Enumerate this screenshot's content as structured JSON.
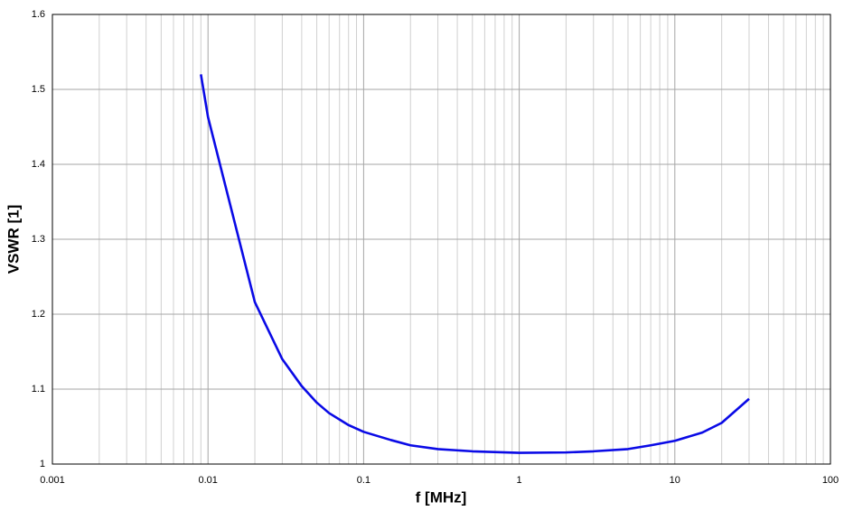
{
  "chart_data": {
    "type": "line",
    "x_label": "f [MHz]",
    "y_label": "VSWR [1]",
    "x": [
      0.009,
      0.01,
      0.02,
      0.03,
      0.04,
      0.05,
      0.06,
      0.08,
      0.1,
      0.15,
      0.2,
      0.3,
      0.5,
      1,
      2,
      3,
      5,
      7,
      10,
      15,
      20,
      30
    ],
    "series": [
      {
        "name": "VSWR",
        "color": "#0a0ae6",
        "values": [
          1.52,
          1.463,
          1.216,
          1.14,
          1.104,
          1.082,
          1.068,
          1.052,
          1.043,
          1.032,
          1.025,
          1.02,
          1.017,
          1.015,
          1.0155,
          1.017,
          1.02,
          1.025,
          1.031,
          1.042,
          1.055,
          1.087
        ]
      }
    ],
    "x_log": true,
    "xlim": [
      0.001,
      100
    ],
    "xticks": [
      0.001,
      0.01,
      0.1,
      1,
      10,
      100
    ],
    "ylim": [
      1,
      1.6
    ],
    "yticks": [
      1,
      1.1,
      1.2,
      1.3,
      1.4,
      1.5,
      1.6
    ],
    "grid": true,
    "minor_grid": true
  }
}
